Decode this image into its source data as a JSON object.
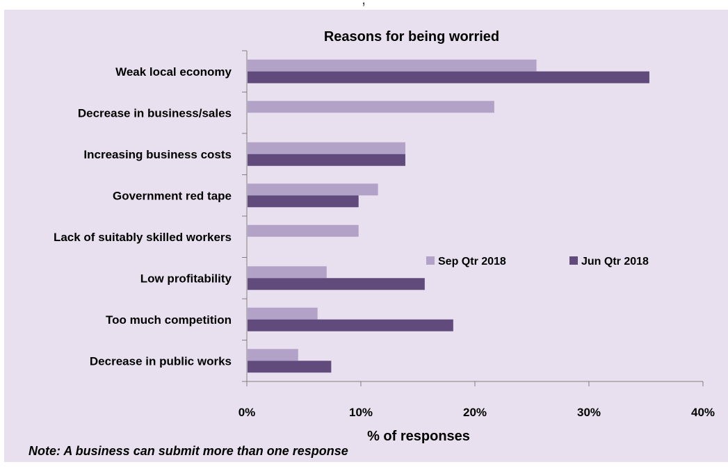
{
  "header_fragment": ", ",
  "footnote": "Note: A business can submit more than one response",
  "colors": {
    "background": "#e8e0ee",
    "sep": "#b3a2c8",
    "jun": "#614b7c",
    "axis": "#7f7f7f"
  },
  "chart_data": {
    "type": "bar",
    "orientation": "horizontal",
    "title": "Reasons for being worried",
    "xlabel": "% of responses",
    "ylabel": "",
    "xlim": [
      0,
      40
    ],
    "xticks": [
      "0%",
      "10%",
      "20%",
      "30%",
      "40%"
    ],
    "grid": false,
    "legend_position": "center-right",
    "categories": [
      "Weak local economy",
      "Decrease in business/sales",
      "Increasing business costs",
      "Government red tape",
      "Lack of suitably skilled workers",
      "Low profitability",
      "Too much competition",
      "Decrease in public works"
    ],
    "series": [
      {
        "name": "Sep Qtr 2018",
        "color": "#b3a2c8",
        "values": [
          25.4,
          21.7,
          13.9,
          11.5,
          9.8,
          7.0,
          6.2,
          4.5
        ]
      },
      {
        "name": "Jun Qtr 2018",
        "color": "#614b7c",
        "values": [
          35.3,
          null,
          13.9,
          9.8,
          null,
          15.6,
          18.1,
          7.4
        ]
      }
    ]
  }
}
